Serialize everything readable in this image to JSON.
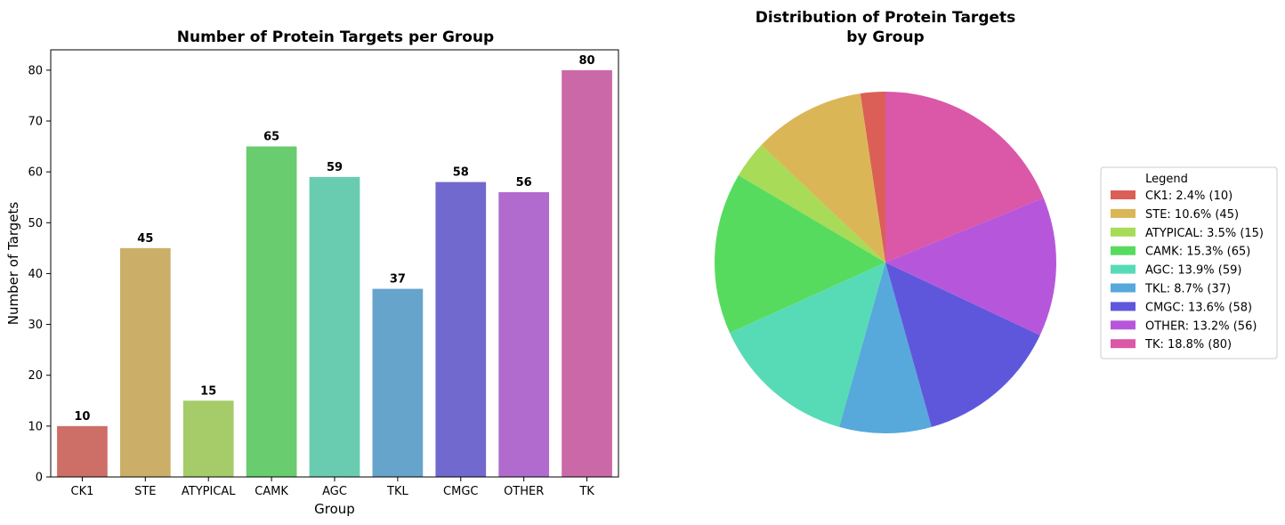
{
  "chart_data": [
    {
      "type": "bar",
      "title": "Number of Protein Targets per Group",
      "xlabel": "Group",
      "ylabel": "Number of Targets",
      "categories": [
        "CK1",
        "STE",
        "ATYPICAL",
        "CAMK",
        "AGC",
        "TKL",
        "CMGC",
        "OTHER",
        "TK"
      ],
      "values": [
        10,
        45,
        15,
        65,
        59,
        37,
        58,
        56,
        80
      ],
      "data_labels": [
        "10",
        "45",
        "15",
        "65",
        "59",
        "37",
        "58",
        "56",
        "80"
      ],
      "colors": [
        "#cd6e67",
        "#cbaf69",
        "#a5cc69",
        "#69cc6e",
        "#69ccb0",
        "#66a4cb",
        "#7169cd",
        "#b16acd",
        "#cb69a8"
      ],
      "ylim": [
        0,
        84
      ],
      "yticks": [
        0,
        10,
        20,
        30,
        40,
        50,
        60,
        70,
        80
      ],
      "ytick_labels": [
        "0",
        "10",
        "20",
        "30",
        "40",
        "50",
        "60",
        "70",
        "80"
      ],
      "grid": false
    },
    {
      "type": "pie",
      "title_lines": [
        "Distribution of Protein Targets",
        "by Group"
      ],
      "categories": [
        "CK1",
        "STE",
        "ATYPICAL",
        "CAMK",
        "AGC",
        "TKL",
        "CMGC",
        "OTHER",
        "TK"
      ],
      "values": [
        10,
        45,
        15,
        65,
        59,
        37,
        58,
        56,
        80
      ],
      "colors": [
        "#db5f57",
        "#dbb657",
        "#a8db57",
        "#57db5f",
        "#57dbb6",
        "#57a8db",
        "#5f57db",
        "#b657db",
        "#db57a8"
      ],
      "legend": {
        "title": "Legend",
        "placement": "right",
        "entries": [
          "CK1: 2.4% (10)",
          "STE: 10.6% (45)",
          "ATYPICAL: 3.5% (15)",
          "CAMK: 15.3% (65)",
          "AGC: 13.9% (59)",
          "TKL: 8.7% (37)",
          "CMGC: 13.6% (58)",
          "OTHER: 13.2% (56)",
          "TK: 18.8% (80)"
        ]
      }
    }
  ]
}
